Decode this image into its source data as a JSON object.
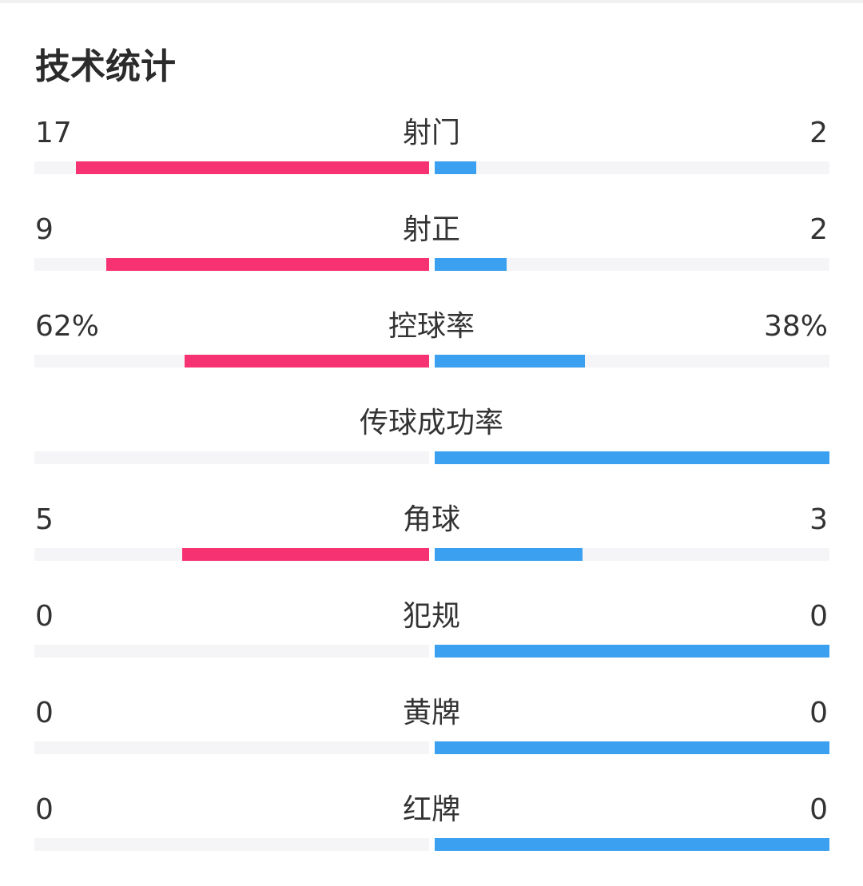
{
  "title": "技术统计",
  "colors": {
    "home": "#f73272",
    "away": "#3aa0ef",
    "track": "#f5f5f7"
  },
  "stats": [
    {
      "label": "射门",
      "home": "17",
      "away": "2",
      "home_fill": 0.894,
      "away_fill": 0.106
    },
    {
      "label": "射正",
      "home": "9",
      "away": "2",
      "home_fill": 0.818,
      "away_fill": 0.182
    },
    {
      "label": "控球率",
      "home": "62%",
      "away": "38%",
      "home_fill": 0.62,
      "away_fill": 0.38
    },
    {
      "label": "传球成功率",
      "home": "",
      "away": "",
      "home_fill": 0,
      "away_fill": 1
    },
    {
      "label": "角球",
      "home": "5",
      "away": "3",
      "home_fill": 0.625,
      "away_fill": 0.375
    },
    {
      "label": "犯规",
      "home": "0",
      "away": "0",
      "home_fill": 0,
      "away_fill": 1
    },
    {
      "label": "黄牌",
      "home": "0",
      "away": "0",
      "home_fill": 0,
      "away_fill": 1
    },
    {
      "label": "红牌",
      "home": "0",
      "away": "0",
      "home_fill": 0,
      "away_fill": 1
    }
  ]
}
